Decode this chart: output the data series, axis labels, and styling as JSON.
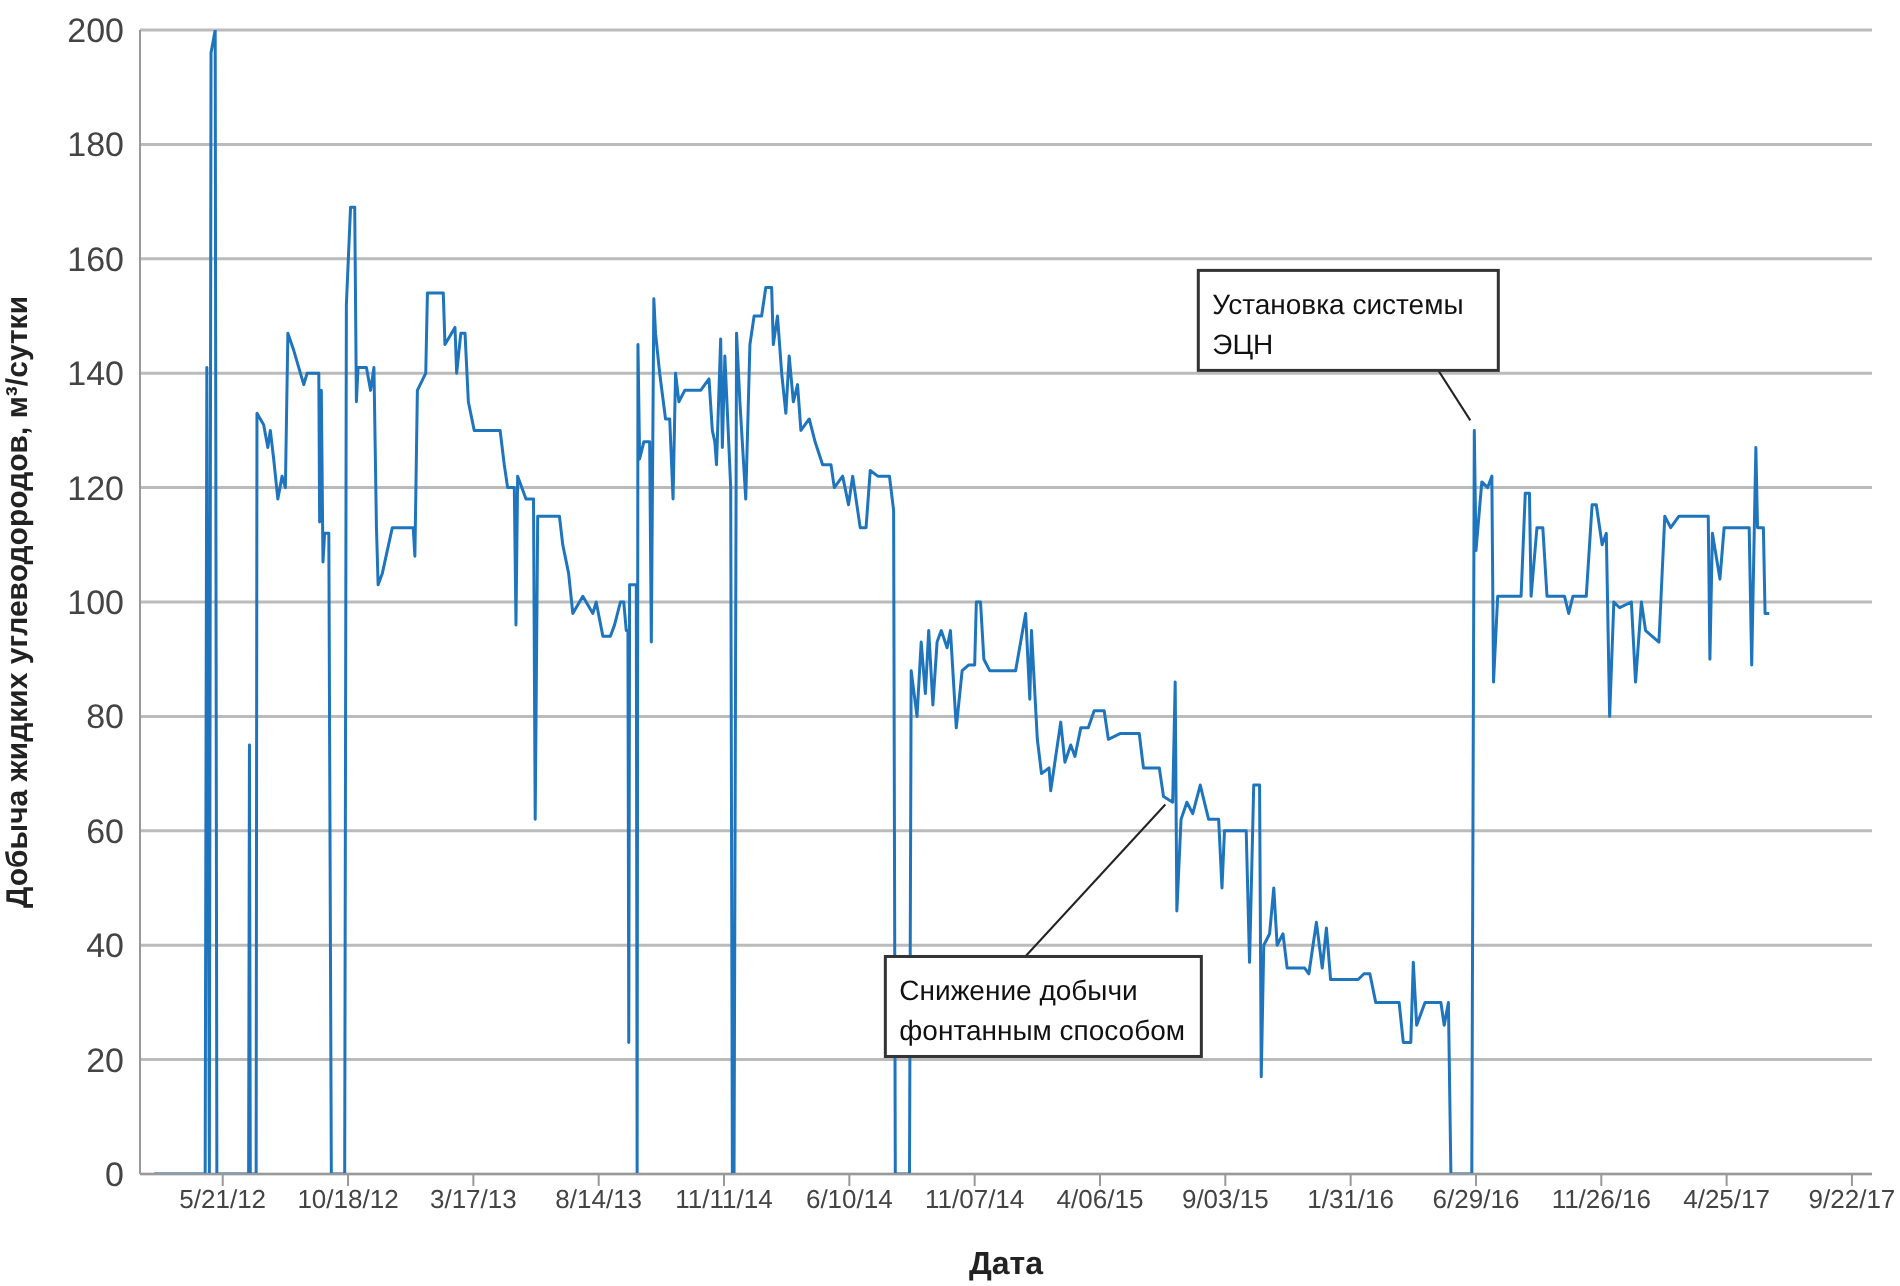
{
  "chart_data": {
    "type": "line",
    "xlabel": "Дата",
    "ylabel": "Добыча жидких углеводородов, м³/сутки",
    "xlim": [
      "2012-02-12",
      "2017-10-16"
    ],
    "xticks": [
      {
        "value": "2012-05-21",
        "label": "5/21/12"
      },
      {
        "value": "2012-10-18",
        "label": "10/18/12"
      },
      {
        "value": "2013-03-17",
        "label": "3/17/13"
      },
      {
        "value": "2013-08-14",
        "label": "8/14/13"
      },
      {
        "value": "2014-01-11",
        "label": "11/11/14"
      },
      {
        "value": "2014-06-10",
        "label": "6/10/14"
      },
      {
        "value": "2014-11-07",
        "label": "11/07/14"
      },
      {
        "value": "2015-04-06",
        "label": "4/06/15"
      },
      {
        "value": "2015-09-03",
        "label": "9/03/15"
      },
      {
        "value": "2016-01-31",
        "label": "1/31/16"
      },
      {
        "value": "2016-06-29",
        "label": "6/29/16"
      },
      {
        "value": "2016-11-26",
        "label": "11/26/16"
      },
      {
        "value": "2017-04-25",
        "label": "4/25/17"
      },
      {
        "value": "2017-09-22",
        "label": "9/22/17"
      }
    ],
    "ylim": [
      0,
      200
    ],
    "yticks": [
      0,
      20,
      40,
      60,
      80,
      100,
      120,
      140,
      160,
      180,
      200
    ],
    "grid": "y",
    "marker": "none",
    "line_style": "solid",
    "annotations": [
      {
        "text": "Снижение добычи фонтанным способом",
        "x": "2015-06-28",
        "y": 66
      },
      {
        "text": "Установка системы ЭЦН",
        "x": "2016-06-27",
        "y": 130
      }
    ],
    "x": [
      "2012-02-29",
      "2012-04-30",
      "2012-05-02",
      "2012-05-05",
      "2012-05-07",
      "2012-05-12",
      "2012-05-14",
      "2012-06-21",
      "2012-06-22",
      "2012-06-23",
      "2012-06-30",
      "2012-07-01",
      "2012-07-09",
      "2012-07-14",
      "2012-07-17",
      "2012-07-21",
      "2012-07-26",
      "2012-07-31",
      "2012-08-04",
      "2012-08-07",
      "2012-08-14",
      "2012-08-26",
      "2012-08-30",
      "2012-09-13",
      "2012-09-14",
      "2012-09-16",
      "2012-09-18",
      "2012-09-20",
      "2012-09-25",
      "2012-09-28",
      "2012-10-14",
      "2012-10-16",
      "2012-10-21",
      "2012-10-26",
      "2012-10-28",
      "2012-10-30",
      "2012-11-09",
      "2012-11-14",
      "2012-11-18",
      "2012-11-21",
      "2012-11-23",
      "2012-11-28",
      "2012-12-10",
      "2013-01-04",
      "2013-01-06",
      "2013-01-09",
      "2013-01-19",
      "2013-01-21",
      "2013-02-09",
      "2013-02-11",
      "2013-02-23",
      "2013-02-25",
      "2013-03-02",
      "2013-03-07",
      "2013-03-11",
      "2013-03-18",
      "2013-04-18",
      "2013-04-23",
      "2013-04-27",
      "2013-05-05",
      "2013-05-07",
      "2013-05-09",
      "2013-05-19",
      "2013-05-28",
      "2013-05-30",
      "2013-06-02",
      "2013-06-28",
      "2013-07-02",
      "2013-07-09",
      "2013-07-14",
      "2013-07-26",
      "2013-08-07",
      "2013-08-11",
      "2013-08-19",
      "2013-08-28",
      "2013-09-02",
      "2013-09-09",
      "2013-09-13",
      "2013-09-16",
      "2013-09-18",
      "2013-09-19",
      "2013-09-20",
      "2013-09-28",
      "2013-09-29",
      "2013-09-30",
      "2013-10-02",
      "2013-10-07",
      "2013-10-14",
      "2013-10-16",
      "2013-10-19",
      "2013-10-21",
      "2013-10-26",
      "2013-11-02",
      "2013-11-07",
      "2013-11-11",
      "2013-11-14",
      "2013-11-18",
      "2013-11-25",
      "2013-12-14",
      "2013-12-24",
      "2013-12-28",
      "2013-12-31",
      "2014-01-02",
      "2014-01-07",
      "2014-01-09",
      "2014-01-12",
      "2014-01-16",
      "2014-01-19",
      "2014-01-21",
      "2014-01-23",
      "2014-01-26",
      "2014-01-30",
      "2014-02-06",
      "2014-02-11",
      "2014-02-16",
      "2014-02-25",
      "2014-03-02",
      "2014-03-09",
      "2014-03-11",
      "2014-03-16",
      "2014-03-21",
      "2014-03-26",
      "2014-03-30",
      "2014-04-04",
      "2014-04-09",
      "2014-04-13",
      "2014-04-23",
      "2014-04-30",
      "2014-05-09",
      "2014-05-19",
      "2014-05-23",
      "2014-06-02",
      "2014-06-09",
      "2014-06-14",
      "2014-06-23",
      "2014-06-30",
      "2014-07-05",
      "2014-07-14",
      "2014-07-28",
      "2014-08-02",
      "2014-08-04",
      "2014-08-21",
      "2014-08-23",
      "2014-08-30",
      "2014-09-04",
      "2014-09-09",
      "2014-09-13",
      "2014-09-18",
      "2014-09-23",
      "2014-09-28",
      "2014-10-05",
      "2014-10-09",
      "2014-10-16",
      "2014-10-23",
      "2014-10-31",
      "2014-11-07",
      "2014-11-09",
      "2014-11-14",
      "2014-11-18",
      "2014-11-25",
      "2014-12-14",
      "2014-12-26",
      "2015-01-07",
      "2015-01-12",
      "2015-01-14",
      "2015-01-21",
      "2015-01-26",
      "2015-02-04",
      "2015-02-06",
      "2015-02-11",
      "2015-02-18",
      "2015-02-23",
      "2015-03-02",
      "2015-03-07",
      "2015-03-14",
      "2015-03-23",
      "2015-03-30",
      "2015-04-11",
      "2015-04-16",
      "2015-04-30",
      "2015-05-05",
      "2015-05-23",
      "2015-05-28",
      "2015-06-16",
      "2015-06-21",
      "2015-07-02",
      "2015-07-05",
      "2015-07-07",
      "2015-07-12",
      "2015-07-19",
      "2015-07-26",
      "2015-08-04",
      "2015-08-14",
      "2015-08-26",
      "2015-08-30",
      "2015-09-02",
      "2015-09-28",
      "2015-10-02",
      "2015-10-07",
      "2015-10-14",
      "2015-10-16",
      "2015-10-19",
      "2015-10-26",
      "2015-10-31",
      "2015-11-04",
      "2015-11-11",
      "2015-11-16",
      "2015-12-07",
      "2015-12-12",
      "2015-12-21",
      "2015-12-28",
      "2016-01-02",
      "2016-01-07",
      "2016-02-09",
      "2016-02-16",
      "2016-02-23",
      "2016-03-01",
      "2016-03-29",
      "2016-04-03",
      "2016-04-12",
      "2016-04-15",
      "2016-04-19",
      "2016-04-29",
      "2016-05-18",
      "2016-05-22",
      "2016-05-27",
      "2016-05-30",
      "2016-06-24",
      "2016-06-27",
      "2016-06-29",
      "2016-07-06",
      "2016-07-13",
      "2016-07-18",
      "2016-07-20",
      "2016-07-25",
      "2016-08-22",
      "2016-08-27",
      "2016-09-01",
      "2016-09-03",
      "2016-09-10",
      "2016-09-17",
      "2016-09-22",
      "2016-10-13",
      "2016-10-18",
      "2016-10-23",
      "2016-11-08",
      "2016-11-15",
      "2016-11-20",
      "2016-11-27",
      "2016-12-02",
      "2016-12-06",
      "2016-12-11",
      "2016-12-18",
      "2017-01-01",
      "2017-01-06",
      "2017-01-13",
      "2017-01-18",
      "2017-02-03",
      "2017-02-10",
      "2017-02-17",
      "2017-02-27",
      "2017-04-03",
      "2017-04-05",
      "2017-04-08",
      "2017-04-17",
      "2017-04-22",
      "2017-05-22",
      "2017-05-25",
      "2017-05-30",
      "2017-06-01",
      "2017-06-08",
      "2017-06-10",
      "2017-06-15"
    ],
    "series": [
      {
        "color": "#1f75bd",
        "values": [
          0,
          0,
          141,
          0,
          196,
          200,
          0,
          0,
          75,
          0,
          0,
          133,
          131,
          127,
          130,
          125,
          118,
          122,
          120,
          147,
          144,
          138,
          140,
          140,
          114,
          137,
          107,
          112,
          112,
          0,
          0,
          152,
          169,
          169,
          135,
          141,
          141,
          137,
          141,
          113,
          103,
          105,
          113,
          113,
          108,
          137,
          140,
          154,
          154,
          145,
          148,
          140,
          147,
          147,
          135,
          130,
          130,
          124,
          120,
          120,
          96,
          122,
          118,
          118,
          62,
          115,
          115,
          110,
          105,
          98,
          101,
          98,
          100,
          94,
          94,
          96,
          100,
          100,
          95,
          95,
          23,
          103,
          103,
          0,
          145,
          125,
          128,
          128,
          93,
          153,
          147,
          140,
          132,
          132,
          118,
          140,
          135,
          137,
          137,
          139,
          130,
          128,
          124,
          146,
          127,
          143,
          130,
          120,
          0,
          0,
          147,
          135,
          118,
          145,
          150,
          150,
          155,
          155,
          145,
          150,
          140,
          133,
          143,
          135,
          138,
          130,
          132,
          128,
          124,
          124,
          120,
          122,
          117,
          122,
          113,
          113,
          123,
          122,
          122,
          116,
          0,
          0,
          88,
          80,
          93,
          84,
          95,
          82,
          93,
          95,
          92,
          95,
          78,
          88,
          89,
          89,
          100,
          100,
          90,
          88,
          88,
          88,
          98,
          83,
          95,
          76,
          70,
          71,
          67,
          72,
          79,
          72,
          75,
          73,
          78,
          78,
          81,
          81,
          76,
          77,
          77,
          77,
          71,
          71,
          66,
          65,
          86,
          46,
          62,
          65,
          63,
          68,
          62,
          62,
          50,
          60,
          60,
          37,
          68,
          68,
          17,
          40,
          42,
          50,
          40,
          42,
          36,
          36,
          35,
          44,
          36,
          43,
          34,
          34,
          35,
          35,
          30,
          30,
          23,
          23,
          37,
          26,
          30,
          30,
          26,
          30,
          0,
          0,
          130,
          109,
          121,
          120,
          122,
          86,
          101,
          101,
          119,
          119,
          101,
          113,
          113,
          101,
          101,
          98,
          101,
          101,
          117,
          117,
          110,
          112,
          80,
          100,
          99,
          100,
          86,
          100,
          95,
          93,
          115,
          113,
          115,
          115,
          90,
          112,
          104,
          113,
          113,
          89,
          127,
          113,
          113,
          98,
          98
        ]
      }
    ]
  }
}
